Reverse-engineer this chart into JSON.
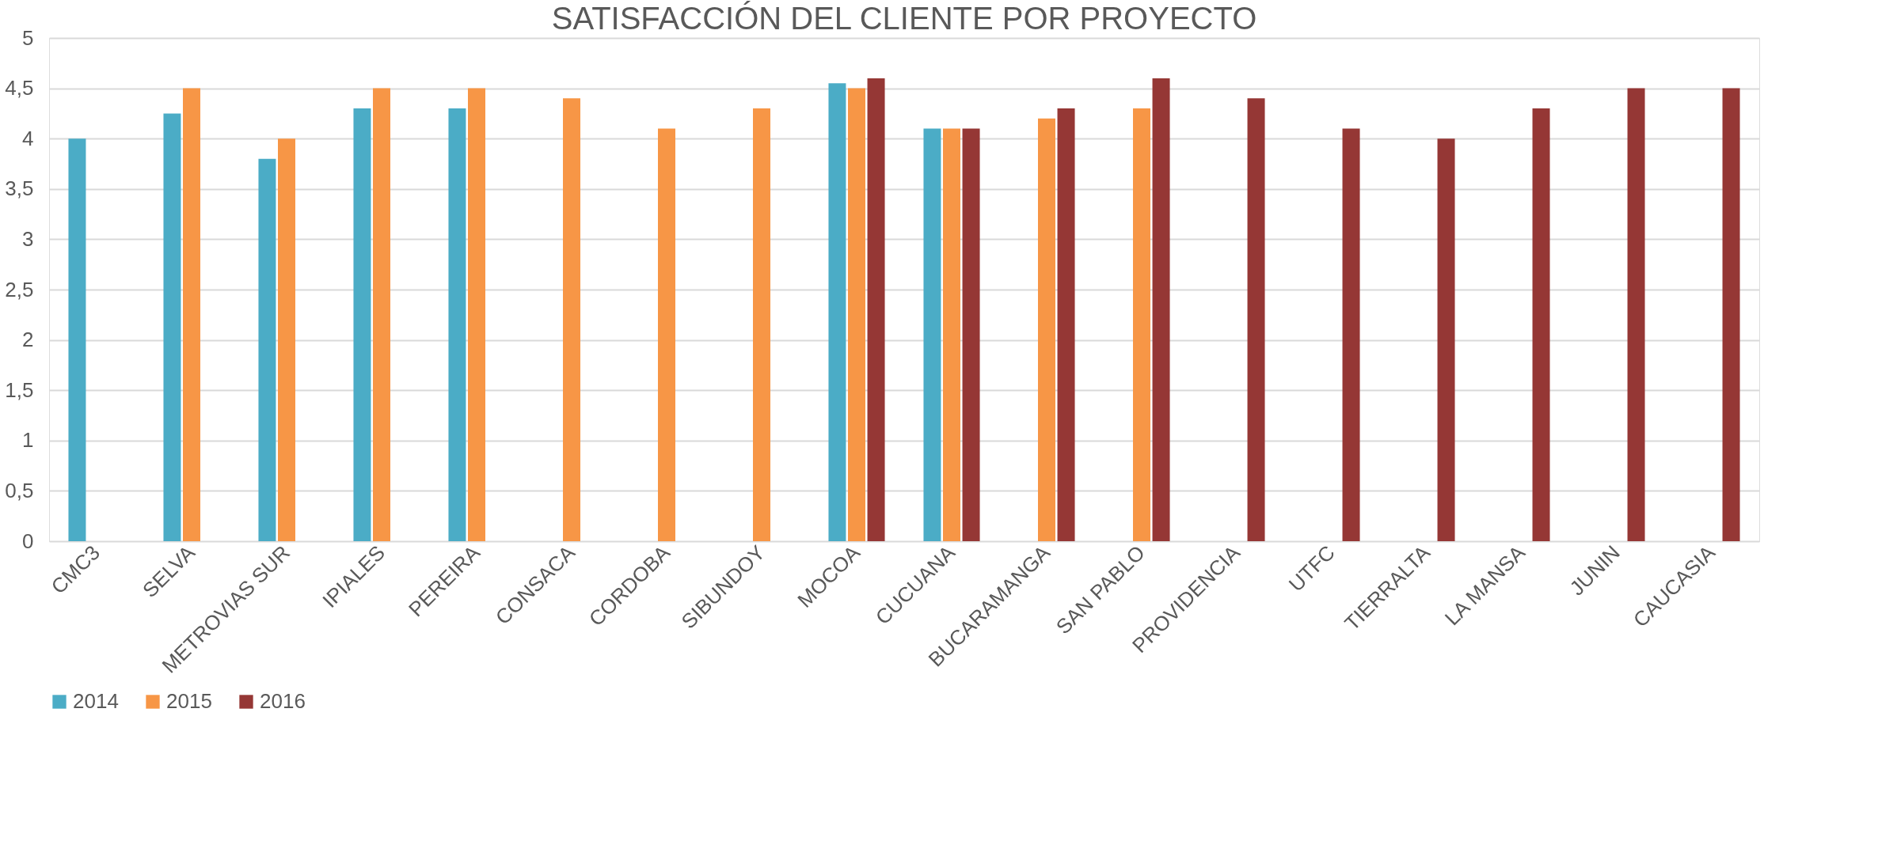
{
  "chart_data": {
    "type": "bar",
    "title": "SATISFACCIÓN DEL CLIENTE POR PROYECTO",
    "categories": [
      "CMC3",
      "SELVA",
      "METROVIAS SUR",
      "IPIALES",
      "PEREIRA",
      "CONSACA",
      "CORDOBA",
      "SIBUNDOY",
      "MOCOA",
      "CUCUANA",
      "BUCARAMANGA",
      "SAN PABLO",
      "PROVIDENCIA",
      "UTFC",
      "TIERRALTA",
      "LA MANSA",
      "JUNIN",
      "CAUCASIA"
    ],
    "series": [
      {
        "name": "2014",
        "color": "#4bacc6",
        "values": [
          4.0,
          4.25,
          3.8,
          4.3,
          4.3,
          null,
          null,
          null,
          4.55,
          4.1,
          null,
          null,
          null,
          null,
          null,
          null,
          null,
          null
        ]
      },
      {
        "name": "2015",
        "color": "#f79646",
        "values": [
          null,
          4.5,
          4.0,
          4.5,
          4.5,
          4.4,
          4.1,
          4.3,
          4.5,
          4.1,
          4.2,
          4.3,
          null,
          null,
          null,
          null,
          null,
          null
        ]
      },
      {
        "name": "2016",
        "color": "#953735",
        "values": [
          null,
          null,
          null,
          null,
          null,
          null,
          null,
          null,
          4.6,
          4.1,
          4.3,
          4.6,
          4.4,
          4.1,
          4.0,
          4.3,
          4.5,
          4.5
        ]
      }
    ],
    "ylim": [
      0,
      5
    ],
    "yticks": [
      {
        "value": 0,
        "label": "0"
      },
      {
        "value": 0.5,
        "label": "0,5"
      },
      {
        "value": 1,
        "label": "1"
      },
      {
        "value": 1.5,
        "label": "1,5"
      },
      {
        "value": 2,
        "label": "2"
      },
      {
        "value": 2.5,
        "label": "2,5"
      },
      {
        "value": 3,
        "label": "3"
      },
      {
        "value": 3.5,
        "label": "3,5"
      },
      {
        "value": 4,
        "label": "4"
      },
      {
        "value": 4.5,
        "label": "4,5"
      },
      {
        "value": 5,
        "label": "5"
      }
    ],
    "grid": "y",
    "legend": "bottom"
  }
}
